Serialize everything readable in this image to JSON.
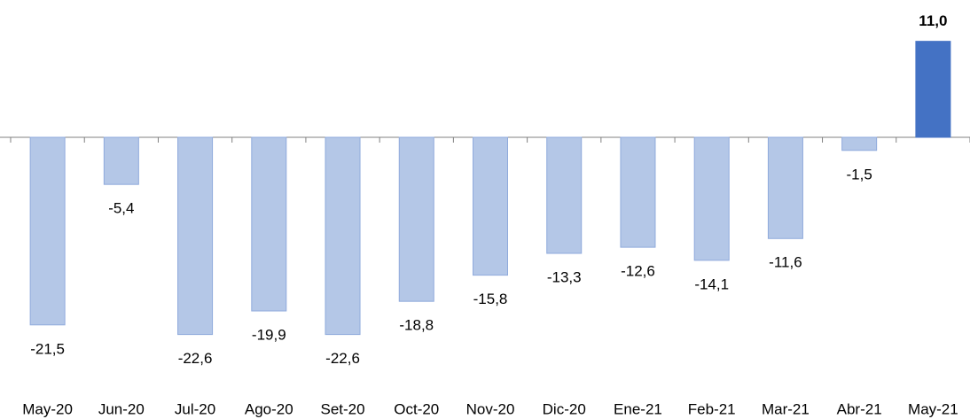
{
  "chart_data": {
    "type": "bar",
    "categories": [
      "May-20",
      "Jun-20",
      "Jul-20",
      "Ago-20",
      "Set-20",
      "Oct-20",
      "Nov-20",
      "Dic-20",
      "Ene-21",
      "Feb-21",
      "Mar-21",
      "Abr-21",
      "May-21"
    ],
    "values": [
      -21.5,
      -5.4,
      -22.6,
      -19.9,
      -22.6,
      -18.8,
      -15.8,
      -13.3,
      -12.6,
      -14.1,
      -11.6,
      -1.5,
      11.0
    ],
    "value_labels": [
      "-21,5",
      "-5,4",
      "-22,6",
      "-19,9",
      "-22,6",
      "-18,8",
      "-15,8",
      "-13,3",
      "-12,6",
      "-14,1",
      "-11,6",
      "-1,5",
      "11,0"
    ],
    "colors": [
      "#b4c7e7",
      "#b4c7e7",
      "#b4c7e7",
      "#b4c7e7",
      "#b4c7e7",
      "#b4c7e7",
      "#b4c7e7",
      "#b4c7e7",
      "#b4c7e7",
      "#b4c7e7",
      "#b4c7e7",
      "#b4c7e7",
      "#4472c4"
    ]
  }
}
